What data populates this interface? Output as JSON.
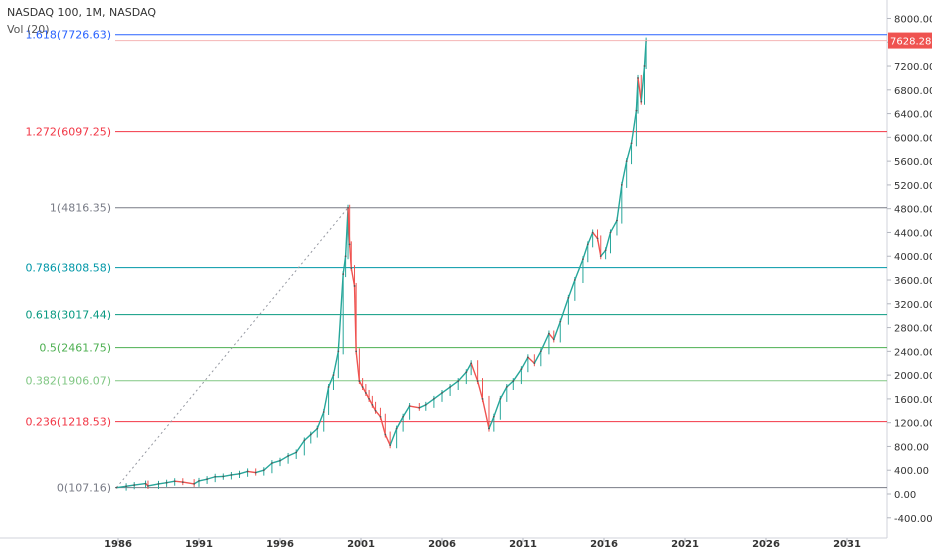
{
  "header": {
    "symbol": "NASDAQ 100, 1M, NASDAQ",
    "volume_label": "Vol (20)"
  },
  "chart_data": {
    "type": "line",
    "title": "NASDAQ 100, 1M, NASDAQ",
    "xlabel": "",
    "ylabel": "",
    "x_ticks": [
      "1986",
      "1991",
      "1996",
      "2001",
      "2006",
      "2011",
      "2016",
      "2021",
      "2026",
      "2031"
    ],
    "y_ticks": [
      "8000.00",
      "7600.00",
      "7200.00",
      "6800.00",
      "6400.00",
      "6000.00",
      "5600.00",
      "5200.00",
      "4800.00",
      "4400.00",
      "4000.00",
      "3600.00",
      "3200.00",
      "2800.00",
      "2400.00",
      "2000.00",
      "1600.00",
      "1200.00",
      "800.00",
      "400.00",
      "0.00",
      "-400.00"
    ],
    "ylim": [
      -400,
      8000
    ],
    "last_price": {
      "label": "7628.28",
      "value": 7628.28,
      "color": "#ef5350"
    },
    "fib_levels": [
      {
        "label": "0(107.16)",
        "value": 107.16,
        "color": "#787b86"
      },
      {
        "label": "0.236(1218.53)",
        "value": 1218.53,
        "color": "#f23645"
      },
      {
        "label": "0.382(1906.07)",
        "value": 1906.07,
        "color": "#81c784"
      },
      {
        "label": "0.5(2461.75)",
        "value": 2461.75,
        "color": "#4caf50"
      },
      {
        "label": "0.618(3017.44)",
        "value": 3017.44,
        "color": "#089981"
      },
      {
        "label": "0.786(3808.58)",
        "value": 3808.58,
        "color": "#0097a7"
      },
      {
        "label": "1(4816.35)",
        "value": 4816.35,
        "color": "#787b86"
      },
      {
        "label": "1.272(6097.25)",
        "value": 6097.25,
        "color": "#f23645"
      },
      {
        "label": "1.618(7726.63)",
        "value": 7726.63,
        "color": "#2962ff"
      }
    ],
    "trend_line": {
      "start": [
        1985.9,
        107.16
      ],
      "end": [
        2000.2,
        4816.35
      ]
    },
    "series": [
      {
        "x": [
          1985.9,
          1986.5,
          1987.0,
          1987.7,
          1987.85,
          1988.5,
          1989.0,
          1989.5,
          1990.0,
          1990.7,
          1991.0,
          1991.5,
          1992.0,
          1992.5,
          1993.0,
          1993.5,
          1994.0,
          1994.5,
          1995.0,
          1995.5,
          1996.0,
          1996.5,
          1997.0,
          1997.5,
          1997.9,
          1998.3,
          1998.7,
          1999.0,
          1999.3,
          1999.6,
          1999.9,
          2000.05,
          2000.2,
          2000.3,
          2000.4,
          2000.6,
          2000.7,
          2000.9,
          2001.1,
          2001.3,
          2001.5,
          2001.7,
          2001.9,
          2002.2,
          2002.5,
          2002.8,
          2003.2,
          2003.6,
          2004.0,
          2004.6,
          2005.0,
          2005.5,
          2006.0,
          2006.5,
          2007.0,
          2007.5,
          2007.8,
          2008.2,
          2008.5,
          2008.9,
          2009.2,
          2009.6,
          2010.0,
          2010.4,
          2010.9,
          2011.3,
          2011.7,
          2012.1,
          2012.6,
          2012.9,
          2013.3,
          2013.8,
          2014.2,
          2014.7,
          2015.0,
          2015.3,
          2015.6,
          2015.8,
          2016.1,
          2016.4,
          2016.8,
          2017.1,
          2017.4,
          2017.7,
          2018.0,
          2018.1,
          2018.3,
          2018.5,
          2018.6
        ],
        "y": [
          107,
          130,
          150,
          175,
          135,
          170,
          190,
          215,
          200,
          170,
          220,
          250,
          290,
          295,
          320,
          340,
          380,
          360,
          400,
          520,
          560,
          640,
          700,
          900,
          1000,
          1100,
          1380,
          1800,
          2000,
          2400,
          3700,
          4000,
          4816,
          4200,
          3800,
          3500,
          2400,
          1900,
          1800,
          1700,
          1600,
          1500,
          1400,
          1300,
          1000,
          820,
          1100,
          1300,
          1480,
          1450,
          1500,
          1600,
          1700,
          1800,
          1900,
          2050,
          2200,
          1900,
          1600,
          1100,
          1300,
          1600,
          1800,
          1900,
          2100,
          2300,
          2200,
          2400,
          2700,
          2600,
          2900,
          3300,
          3600,
          3950,
          4200,
          4400,
          4300,
          4000,
          4100,
          4400,
          4600,
          5200,
          5600,
          5900,
          6450,
          7000,
          6600,
          7200,
          7628
        ]
      }
    ]
  }
}
